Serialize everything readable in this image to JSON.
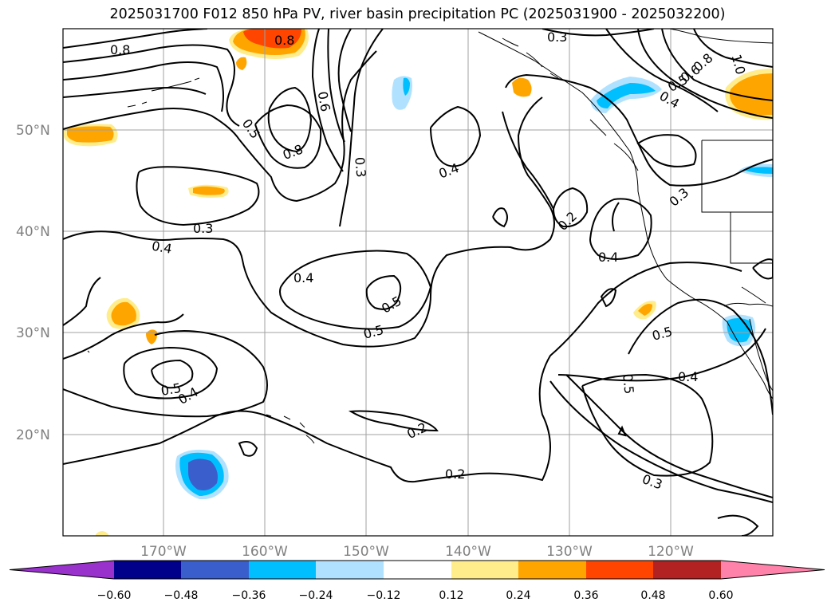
{
  "title": "2025031700 F012 850 hPa PV, river basin precipitation PC (2025031900 - 2025032200)",
  "lat_labels": [
    "50°N",
    "40°N",
    "30°N",
    "20°N"
  ],
  "lon_labels": [
    "170°W",
    "160°W",
    "150°W",
    "140°W",
    "130°W",
    "120°W"
  ],
  "contour_labels": [
    "0.8",
    "0.8",
    "0.6",
    "0.5",
    "0.8",
    "0.3",
    "0.3",
    "0.4",
    "0.4",
    "0.5",
    "0.5",
    "0.5",
    "0.4",
    "0.2",
    "0.2",
    "0.3",
    "0.2",
    "0.4",
    "0.4",
    "0.3",
    "0.5",
    "0.5",
    "0.4",
    "0.3",
    "0.5",
    "0.6",
    "0.8",
    "1.0",
    "0.4"
  ],
  "colorbar": {
    "ticks": [
      "−0.60",
      "−0.48",
      "−0.36",
      "−0.24",
      "−0.12",
      "0.12",
      "0.24",
      "0.36",
      "0.48",
      "0.60"
    ],
    "colors": [
      "#9932cc",
      "#00008b",
      "#3a5fcd",
      "#00bfff",
      "#b0e2ff",
      "#ffffff",
      "#ffec8b",
      "#ffa500",
      "#ff4500",
      "#b22222",
      "#ff82ab"
    ]
  },
  "colors": {
    "contour": "#000000",
    "grid": "#a0a0a0",
    "coast": "#000000"
  }
}
